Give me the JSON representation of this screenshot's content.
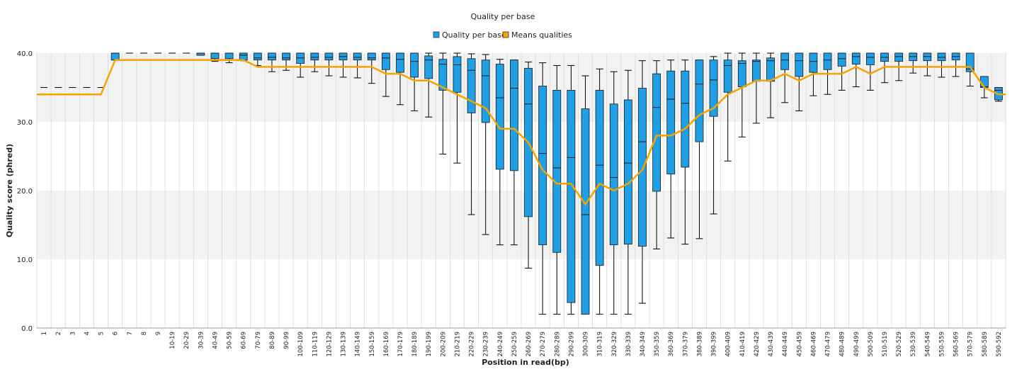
{
  "chart_data": {
    "type": "box",
    "title": "Quality per base",
    "xlabel": "Position in read(bp)",
    "ylabel": "Quality score (phred)",
    "ylim": [
      0,
      40
    ],
    "yticks": [
      "0.0",
      "10.0",
      "20.0",
      "30.0",
      "40.0"
    ],
    "background_bands": "alternating light grey / white every 10 units",
    "legend": {
      "placement": "top-center",
      "items": [
        {
          "label": "Quality per base",
          "color": "#1e9fe6"
        },
        {
          "label": "Means qualities",
          "color": "#f5a300"
        }
      ]
    },
    "colors": {
      "box": "#1e9fe6",
      "mean_line": "#f5a300",
      "grid": "#d9d9d9",
      "band": "#f2f2f2"
    },
    "categories": [
      "1",
      "2",
      "3",
      "4",
      "5",
      "6",
      "7",
      "8",
      "9",
      "10-19",
      "20-29",
      "30-39",
      "40-49",
      "50-59",
      "60-69",
      "70-79",
      "80-89",
      "90-99",
      "100-109",
      "110-119",
      "120-129",
      "130-139",
      "140-149",
      "150-159",
      "160-169",
      "170-179",
      "180-189",
      "190-199",
      "200-209",
      "210-219",
      "220-229",
      "230-239",
      "240-249",
      "250-259",
      "260-269",
      "270-279",
      "280-289",
      "290-299",
      "300-309",
      "310-319",
      "320-329",
      "330-339",
      "340-349",
      "350-359",
      "360-369",
      "370-379",
      "380-389",
      "390-399",
      "400-409",
      "410-419",
      "420-429",
      "430-439",
      "440-449",
      "450-459",
      "460-469",
      "470-479",
      "480-489",
      "490-499",
      "500-509",
      "510-519",
      "520-529",
      "530-539",
      "540-549",
      "550-559",
      "560-569",
      "570-579",
      "580-589",
      "590-592"
    ],
    "series": [
      {
        "name": "Quality per base",
        "boxes": [
          [
            35,
            35,
            35,
            35,
            35
          ],
          [
            35,
            35,
            35,
            35,
            35
          ],
          [
            35,
            35,
            35,
            35,
            35
          ],
          [
            35,
            35,
            35,
            35,
            35
          ],
          [
            35,
            35,
            35,
            35,
            35
          ],
          [
            39,
            39,
            40,
            40,
            40
          ],
          [
            40,
            40,
            40,
            40,
            40
          ],
          [
            40,
            40,
            40,
            40,
            40
          ],
          [
            40,
            40,
            40,
            40,
            40
          ],
          [
            40,
            40,
            40,
            40,
            40
          ],
          [
            40,
            40,
            40,
            40,
            40
          ],
          [
            39.7,
            39.7,
            40,
            40,
            40
          ],
          [
            38.8,
            39.2,
            40,
            40,
            40
          ],
          [
            38.6,
            39.2,
            40,
            40,
            40
          ],
          [
            38.9,
            39,
            39.7,
            40,
            40
          ],
          [
            38.2,
            39,
            39.3,
            40,
            40
          ],
          [
            37.3,
            39,
            39.4,
            40,
            40
          ],
          [
            37.5,
            39,
            39.3,
            40,
            40
          ],
          [
            36.5,
            38.5,
            39.3,
            40,
            40
          ],
          [
            37.3,
            39,
            39.4,
            40,
            40
          ],
          [
            36.7,
            39,
            39.4,
            40,
            40
          ],
          [
            36.5,
            39,
            39.5,
            40,
            40
          ],
          [
            36.4,
            39,
            39.4,
            40,
            40
          ],
          [
            35.6,
            39,
            39.3,
            40,
            40
          ],
          [
            33.7,
            37.6,
            39.3,
            40,
            40
          ],
          [
            32.5,
            37.2,
            39.1,
            40,
            40
          ],
          [
            31.6,
            36.5,
            38.8,
            40,
            40
          ],
          [
            30.7,
            36.3,
            39,
            39.6,
            40
          ],
          [
            25.3,
            34.6,
            38.4,
            39.1,
            40
          ],
          [
            24,
            34.3,
            38.3,
            39.5,
            40
          ],
          [
            16.5,
            31.3,
            37.5,
            39.2,
            39.9
          ],
          [
            13.6,
            29.9,
            36.7,
            39,
            39.8
          ],
          [
            12.1,
            23.1,
            33.5,
            38.4,
            39.1
          ],
          [
            12.1,
            22.9,
            34.9,
            39,
            39
          ],
          [
            8.7,
            16.2,
            32.6,
            37.8,
            38.7
          ],
          [
            2,
            12.1,
            25.4,
            35.2,
            38.6
          ],
          [
            2,
            11,
            23.3,
            34.6,
            38.2
          ],
          [
            2,
            3.7,
            24.8,
            34.6,
            38.2
          ],
          [
            2,
            2,
            16.5,
            31.9,
            36.7
          ],
          [
            2,
            9.1,
            23.7,
            34.6,
            37.7
          ],
          [
            2,
            12.1,
            21.9,
            32.6,
            37.3
          ],
          [
            2,
            12.2,
            24,
            33.2,
            37.5
          ],
          [
            3.6,
            11.9,
            27.1,
            34.9,
            38.9
          ],
          [
            11.5,
            19.9,
            32.1,
            37,
            38.9
          ],
          [
            13.1,
            22.4,
            33.3,
            37.4,
            39
          ],
          [
            12.2,
            23.4,
            32.7,
            37.4,
            39
          ],
          [
            13,
            27.1,
            35.5,
            39,
            39
          ],
          [
            16.6,
            30.8,
            36.1,
            39,
            39.5
          ],
          [
            24.3,
            34.3,
            38.2,
            39,
            40
          ],
          [
            27.8,
            35.1,
            38.5,
            38.9,
            40
          ],
          [
            29.8,
            35.9,
            38.8,
            39,
            40
          ],
          [
            30.6,
            35.9,
            38.9,
            39.3,
            40
          ],
          [
            32.8,
            37.6,
            39,
            40,
            40
          ],
          [
            31.6,
            36.6,
            38.9,
            40,
            40
          ],
          [
            33.8,
            37.2,
            38.8,
            40,
            40
          ],
          [
            34,
            37.6,
            39,
            40,
            40
          ],
          [
            34.6,
            38.1,
            39.2,
            40,
            40
          ],
          [
            35.1,
            38.4,
            39.5,
            40,
            40
          ],
          [
            34.6,
            38.3,
            39.4,
            40,
            40
          ],
          [
            35.7,
            38.8,
            39.4,
            40,
            40
          ],
          [
            36,
            38.8,
            39.5,
            40,
            40
          ],
          [
            37.1,
            38.9,
            39.5,
            40,
            40
          ],
          [
            36.7,
            38.9,
            39.5,
            40,
            40
          ],
          [
            36.5,
            38.9,
            39.4,
            40,
            40
          ],
          [
            36.6,
            39,
            39.5,
            40,
            40
          ],
          [
            35.2,
            37.3,
            37.7,
            40,
            40
          ],
          [
            33.5,
            35,
            35.1,
            36.6,
            36.6
          ],
          [
            33,
            33.2,
            34.6,
            35,
            35
          ]
        ]
      },
      {
        "name": "Means qualities",
        "values": [
          34,
          34,
          34,
          34,
          34,
          39,
          39,
          39,
          39,
          39,
          39,
          39,
          39,
          39,
          39,
          38,
          38,
          38,
          38,
          38,
          38,
          38,
          38,
          38,
          37,
          37,
          36,
          36,
          35,
          34,
          33,
          32,
          29,
          29,
          27,
          23,
          21,
          21,
          18,
          21,
          20,
          21,
          23,
          28,
          28,
          29,
          31,
          32,
          34,
          35,
          36,
          36,
          37,
          36,
          37,
          37,
          37,
          38,
          37,
          38,
          38,
          38,
          38,
          38,
          38,
          38,
          35,
          34
        ]
      }
    ]
  }
}
